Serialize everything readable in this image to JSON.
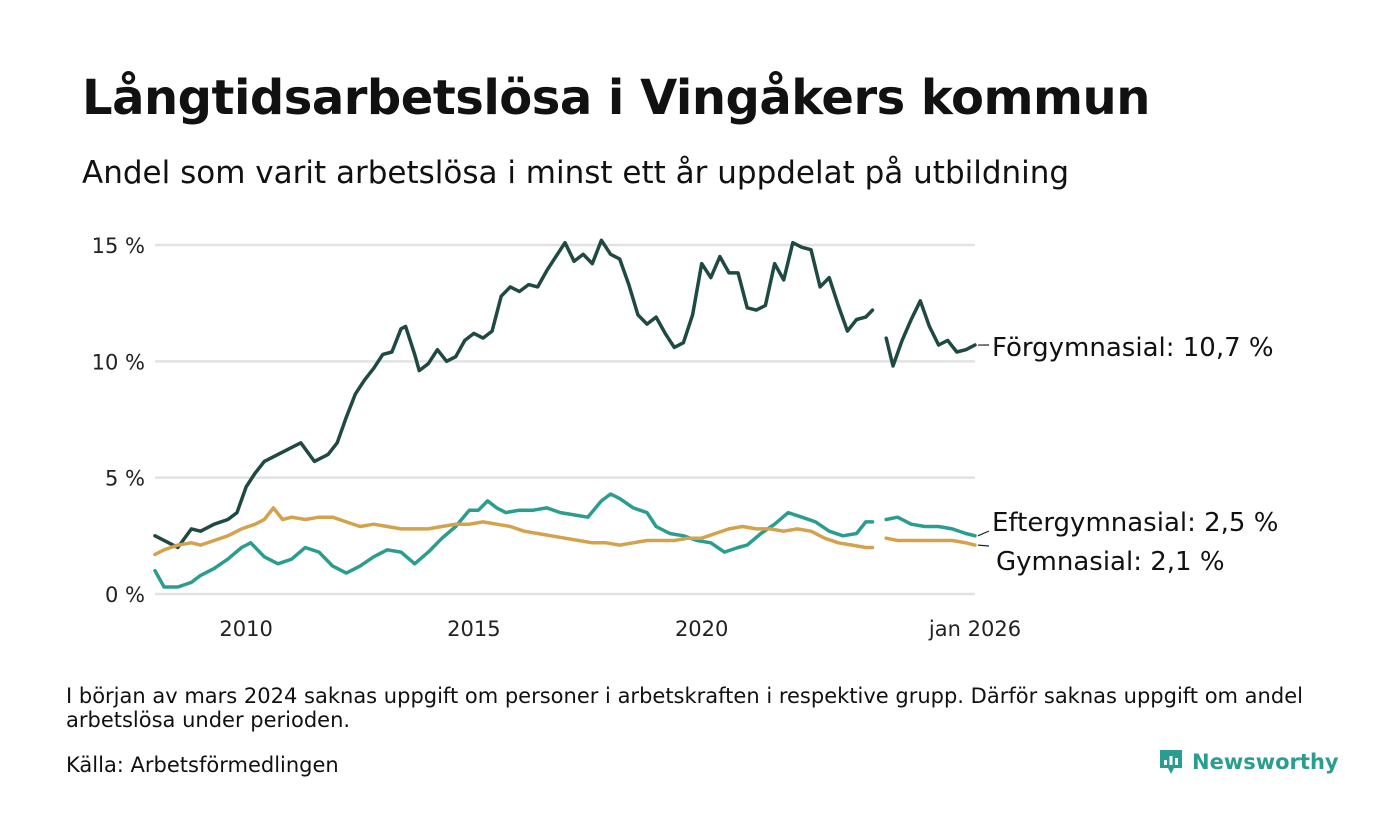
{
  "title": "Långtidsarbetslösa i Vingåkers kommun",
  "subtitle": "Andel som varit arbetslösa i minst ett år uppdelat på utbildning",
  "footnote": "I början av mars 2024 saknas uppgift om personer i arbetskraften i respektive grupp. Därför saknas uppgift om andel arbetslösa under perioden.",
  "source": "Källa: Arbetsförmedlingen",
  "brand": "Newsworthy",
  "colors": {
    "forgymnasial": "#1f4a44",
    "eftergymnasial": "#2a9d8f",
    "gymnasial": "#d4a24c",
    "grid": "#e2e2e2",
    "brand": "#2a9d8f"
  },
  "chart_data": {
    "type": "line",
    "title": "Långtidsarbetslösa i Vingåkers kommun",
    "xlabel": "",
    "ylabel": "",
    "xlim": [
      2008.0,
      2026.0
    ],
    "ylim": [
      0,
      15
    ],
    "y_ticks": [
      0,
      5,
      10,
      15
    ],
    "y_tick_labels": [
      "0 %",
      "5 %",
      "10 %",
      "15 %"
    ],
    "x_ticks": [
      2010,
      2015,
      2020,
      2026
    ],
    "x_tick_labels": [
      "2010",
      "2015",
      "2020",
      "jan 2026"
    ],
    "grid": true,
    "gap": [
      2023.75,
      2024.05
    ],
    "series": [
      {
        "name": "Förgymnasial",
        "label": "Förgymnasial: 10,7 %",
        "last_value": 10.7,
        "color": "#1f4a44",
        "points": [
          [
            2008.0,
            2.5
          ],
          [
            2008.3,
            2.2
          ],
          [
            2008.5,
            2.0
          ],
          [
            2008.8,
            2.8
          ],
          [
            2009.0,
            2.7
          ],
          [
            2009.3,
            3.0
          ],
          [
            2009.6,
            3.2
          ],
          [
            2009.8,
            3.5
          ],
          [
            2010.0,
            4.6
          ],
          [
            2010.2,
            5.2
          ],
          [
            2010.4,
            5.7
          ],
          [
            2010.7,
            6.0
          ],
          [
            2011.0,
            6.3
          ],
          [
            2011.2,
            6.5
          ],
          [
            2011.5,
            5.7
          ],
          [
            2011.8,
            6.0
          ],
          [
            2012.0,
            6.5
          ],
          [
            2012.2,
            7.6
          ],
          [
            2012.4,
            8.6
          ],
          [
            2012.6,
            9.2
          ],
          [
            2012.8,
            9.7
          ],
          [
            2013.0,
            10.3
          ],
          [
            2013.2,
            10.4
          ],
          [
            2013.4,
            11.4
          ],
          [
            2013.5,
            11.5
          ],
          [
            2013.7,
            10.3
          ],
          [
            2013.8,
            9.6
          ],
          [
            2014.0,
            9.9
          ],
          [
            2014.2,
            10.5
          ],
          [
            2014.4,
            10.0
          ],
          [
            2014.6,
            10.2
          ],
          [
            2014.8,
            10.9
          ],
          [
            2015.0,
            11.2
          ],
          [
            2015.2,
            11.0
          ],
          [
            2015.4,
            11.3
          ],
          [
            2015.6,
            12.8
          ],
          [
            2015.8,
            13.2
          ],
          [
            2016.0,
            13.0
          ],
          [
            2016.2,
            13.3
          ],
          [
            2016.4,
            13.2
          ],
          [
            2016.6,
            13.9
          ],
          [
            2016.8,
            14.5
          ],
          [
            2017.0,
            15.1
          ],
          [
            2017.2,
            14.3
          ],
          [
            2017.4,
            14.6
          ],
          [
            2017.6,
            14.2
          ],
          [
            2017.8,
            15.2
          ],
          [
            2018.0,
            14.6
          ],
          [
            2018.2,
            14.4
          ],
          [
            2018.4,
            13.3
          ],
          [
            2018.6,
            12.0
          ],
          [
            2018.8,
            11.6
          ],
          [
            2019.0,
            11.9
          ],
          [
            2019.2,
            11.2
          ],
          [
            2019.4,
            10.6
          ],
          [
            2019.6,
            10.8
          ],
          [
            2019.8,
            12.0
          ],
          [
            2020.0,
            14.2
          ],
          [
            2020.2,
            13.6
          ],
          [
            2020.4,
            14.5
          ],
          [
            2020.6,
            13.8
          ],
          [
            2020.8,
            13.8
          ],
          [
            2021.0,
            12.3
          ],
          [
            2021.2,
            12.2
          ],
          [
            2021.4,
            12.4
          ],
          [
            2021.6,
            14.2
          ],
          [
            2021.8,
            13.5
          ],
          [
            2022.0,
            15.1
          ],
          [
            2022.2,
            14.9
          ],
          [
            2022.4,
            14.8
          ],
          [
            2022.6,
            13.2
          ],
          [
            2022.8,
            13.6
          ],
          [
            2023.0,
            12.4
          ],
          [
            2023.2,
            11.3
          ],
          [
            2023.4,
            11.8
          ],
          [
            2023.6,
            11.9
          ],
          [
            2023.75,
            12.2
          ],
          [
            2024.05,
            11.0
          ],
          [
            2024.2,
            9.8
          ],
          [
            2024.4,
            10.9
          ],
          [
            2024.6,
            11.8
          ],
          [
            2024.8,
            12.6
          ],
          [
            2025.0,
            11.5
          ],
          [
            2025.2,
            10.7
          ],
          [
            2025.4,
            10.9
          ],
          [
            2025.6,
            10.4
          ],
          [
            2025.8,
            10.5
          ],
          [
            2026.0,
            10.7
          ]
        ]
      },
      {
        "name": "Eftergymnasial",
        "label": "Eftergymnasial:  2,5 %",
        "last_value": 2.5,
        "color": "#2a9d8f",
        "points": [
          [
            2008.0,
            1.0
          ],
          [
            2008.2,
            0.3
          ],
          [
            2008.5,
            0.3
          ],
          [
            2008.8,
            0.5
          ],
          [
            2009.0,
            0.8
          ],
          [
            2009.3,
            1.1
          ],
          [
            2009.6,
            1.5
          ],
          [
            2009.9,
            2.0
          ],
          [
            2010.1,
            2.2
          ],
          [
            2010.4,
            1.6
          ],
          [
            2010.7,
            1.3
          ],
          [
            2011.0,
            1.5
          ],
          [
            2011.3,
            2.0
          ],
          [
            2011.6,
            1.8
          ],
          [
            2011.9,
            1.2
          ],
          [
            2012.2,
            0.9
          ],
          [
            2012.5,
            1.2
          ],
          [
            2012.8,
            1.6
          ],
          [
            2013.1,
            1.9
          ],
          [
            2013.4,
            1.8
          ],
          [
            2013.7,
            1.3
          ],
          [
            2014.0,
            1.8
          ],
          [
            2014.3,
            2.4
          ],
          [
            2014.6,
            2.9
          ],
          [
            2014.9,
            3.6
          ],
          [
            2015.1,
            3.6
          ],
          [
            2015.3,
            4.0
          ],
          [
            2015.5,
            3.7
          ],
          [
            2015.7,
            3.5
          ],
          [
            2016.0,
            3.6
          ],
          [
            2016.3,
            3.6
          ],
          [
            2016.6,
            3.7
          ],
          [
            2016.9,
            3.5
          ],
          [
            2017.2,
            3.4
          ],
          [
            2017.5,
            3.3
          ],
          [
            2017.8,
            4.0
          ],
          [
            2018.0,
            4.3
          ],
          [
            2018.2,
            4.1
          ],
          [
            2018.5,
            3.7
          ],
          [
            2018.8,
            3.5
          ],
          [
            2019.0,
            2.9
          ],
          [
            2019.3,
            2.6
          ],
          [
            2019.6,
            2.5
          ],
          [
            2019.9,
            2.3
          ],
          [
            2020.2,
            2.2
          ],
          [
            2020.5,
            1.8
          ],
          [
            2020.8,
            2.0
          ],
          [
            2021.0,
            2.1
          ],
          [
            2021.3,
            2.6
          ],
          [
            2021.6,
            3.0
          ],
          [
            2021.9,
            3.5
          ],
          [
            2022.2,
            3.3
          ],
          [
            2022.5,
            3.1
          ],
          [
            2022.8,
            2.7
          ],
          [
            2023.1,
            2.5
          ],
          [
            2023.4,
            2.6
          ],
          [
            2023.6,
            3.1
          ],
          [
            2023.75,
            3.1
          ],
          [
            2024.05,
            3.2
          ],
          [
            2024.3,
            3.3
          ],
          [
            2024.6,
            3.0
          ],
          [
            2024.9,
            2.9
          ],
          [
            2025.2,
            2.9
          ],
          [
            2025.5,
            2.8
          ],
          [
            2025.8,
            2.6
          ],
          [
            2026.0,
            2.5
          ]
        ]
      },
      {
        "name": "Gymnasial",
        "label": "Gymnasial:  2,1 %",
        "last_value": 2.1,
        "color": "#d4a24c",
        "points": [
          [
            2008.0,
            1.7
          ],
          [
            2008.2,
            1.9
          ],
          [
            2008.5,
            2.1
          ],
          [
            2008.8,
            2.2
          ],
          [
            2009.0,
            2.1
          ],
          [
            2009.3,
            2.3
          ],
          [
            2009.6,
            2.5
          ],
          [
            2009.9,
            2.8
          ],
          [
            2010.2,
            3.0
          ],
          [
            2010.4,
            3.2
          ],
          [
            2010.6,
            3.7
          ],
          [
            2010.8,
            3.2
          ],
          [
            2011.0,
            3.3
          ],
          [
            2011.3,
            3.2
          ],
          [
            2011.6,
            3.3
          ],
          [
            2011.9,
            3.3
          ],
          [
            2012.2,
            3.1
          ],
          [
            2012.5,
            2.9
          ],
          [
            2012.8,
            3.0
          ],
          [
            2013.1,
            2.9
          ],
          [
            2013.4,
            2.8
          ],
          [
            2013.7,
            2.8
          ],
          [
            2014.0,
            2.8
          ],
          [
            2014.3,
            2.9
          ],
          [
            2014.6,
            3.0
          ],
          [
            2014.9,
            3.0
          ],
          [
            2015.2,
            3.1
          ],
          [
            2015.5,
            3.0
          ],
          [
            2015.8,
            2.9
          ],
          [
            2016.1,
            2.7
          ],
          [
            2016.4,
            2.6
          ],
          [
            2016.7,
            2.5
          ],
          [
            2017.0,
            2.4
          ],
          [
            2017.3,
            2.3
          ],
          [
            2017.6,
            2.2
          ],
          [
            2017.9,
            2.2
          ],
          [
            2018.2,
            2.1
          ],
          [
            2018.5,
            2.2
          ],
          [
            2018.8,
            2.3
          ],
          [
            2019.1,
            2.3
          ],
          [
            2019.4,
            2.3
          ],
          [
            2019.7,
            2.4
          ],
          [
            2020.0,
            2.4
          ],
          [
            2020.3,
            2.6
          ],
          [
            2020.6,
            2.8
          ],
          [
            2020.9,
            2.9
          ],
          [
            2021.2,
            2.8
          ],
          [
            2021.5,
            2.8
          ],
          [
            2021.8,
            2.7
          ],
          [
            2022.1,
            2.8
          ],
          [
            2022.4,
            2.7
          ],
          [
            2022.7,
            2.4
          ],
          [
            2023.0,
            2.2
          ],
          [
            2023.3,
            2.1
          ],
          [
            2023.6,
            2.0
          ],
          [
            2023.75,
            2.0
          ],
          [
            2024.05,
            2.4
          ],
          [
            2024.3,
            2.3
          ],
          [
            2024.6,
            2.3
          ],
          [
            2024.9,
            2.3
          ],
          [
            2025.2,
            2.3
          ],
          [
            2025.5,
            2.3
          ],
          [
            2025.8,
            2.2
          ],
          [
            2026.0,
            2.1
          ]
        ]
      }
    ]
  }
}
